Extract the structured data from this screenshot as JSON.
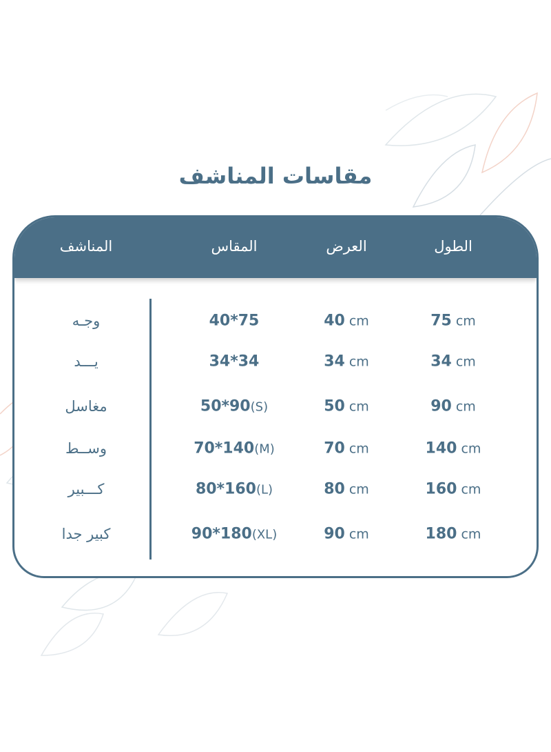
{
  "title": "مقاسات المناشف",
  "colors": {
    "primary": "#4b6f87",
    "background": "#ffffff"
  },
  "table": {
    "headers": [
      "الطول",
      "العرض",
      "المقاس",
      "المناشف"
    ],
    "rows": [
      {
        "name": "وجـه",
        "size": "40*75",
        "size_tag": "",
        "width": "40",
        "length": "75",
        "unit": "cm"
      },
      {
        "name": "يـــد",
        "size": "34*34",
        "size_tag": "",
        "width": "34",
        "length": "34",
        "unit": "cm"
      },
      {
        "name": "مغاسل",
        "size": "50*90",
        "size_tag": "(S)",
        "width": "50",
        "length": "90",
        "unit": "cm"
      },
      {
        "name": "وســط",
        "size": "70*140",
        "size_tag": "(M)",
        "width": "70",
        "length": "140",
        "unit": "cm"
      },
      {
        "name": "كـــبير",
        "size": "80*160",
        "size_tag": "(L)",
        "width": "80",
        "length": "160",
        "unit": "cm"
      },
      {
        "name": "كبير جدا",
        "size": "90*180",
        "size_tag": "(XL)",
        "width": "90",
        "length": "180",
        "unit": "cm"
      }
    ]
  }
}
